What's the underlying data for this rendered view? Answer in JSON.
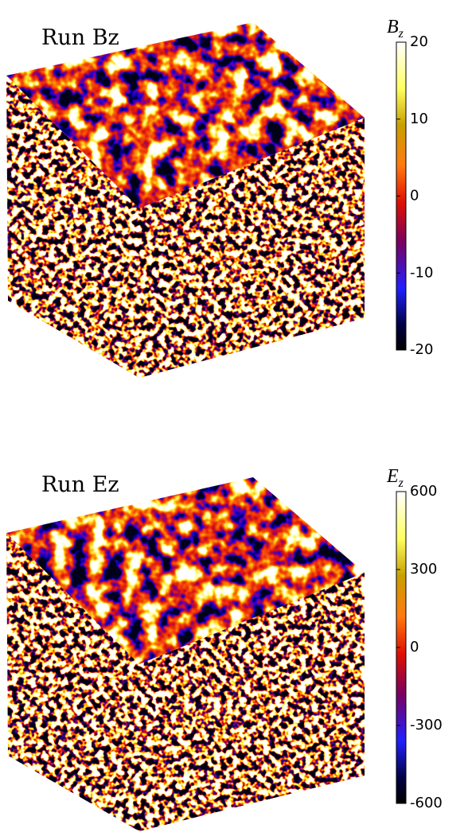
{
  "panels": [
    {
      "title": "Run Bz",
      "colorbar": {
        "label": "B",
        "subscript": "z",
        "ticks": [
          20,
          10,
          0,
          -10,
          -20
        ]
      }
    },
    {
      "title": "Run Ez",
      "colorbar": {
        "label": "E",
        "subscript": "z",
        "ticks": [
          600,
          300,
          0,
          -300,
          -600
        ]
      }
    }
  ]
}
